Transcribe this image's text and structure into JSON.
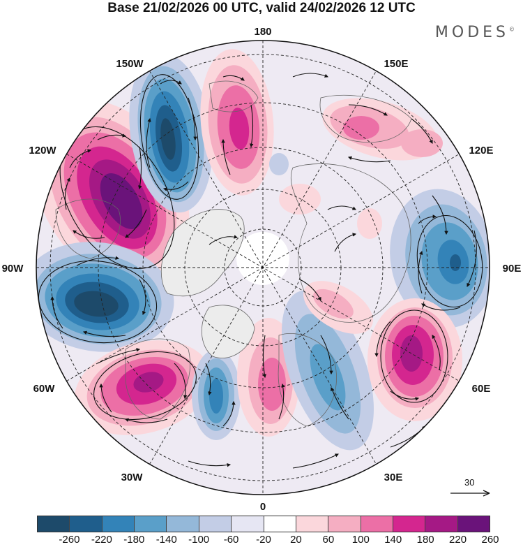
{
  "title": "Base 21/02/2026 00 UTC, valid 24/02/2026 12 UTC",
  "brand": "MODES",
  "brand_mark": "©",
  "longitude_labels": {
    "lon_0": "0",
    "lon_30e": "30E",
    "lon_60e": "60E",
    "lon_90e": "90E",
    "lon_120e": "120E",
    "lon_150e": "150E",
    "lon_180": "180",
    "lon_150w": "150W",
    "lon_120w": "120W",
    "lon_90w": "90W",
    "lon_60w": "60W",
    "lon_30w": "30W"
  },
  "reference_vector": {
    "label": "30"
  },
  "colorbar": {
    "ticks": [
      "-260",
      "-220",
      "-180",
      "-140",
      "-100",
      "-60",
      "-20",
      "20",
      "60",
      "100",
      "140",
      "180",
      "220",
      "260"
    ],
    "colors": [
      "#1d4a6a",
      "#1f5e8c",
      "#3383b8",
      "#5a9fc9",
      "#94b8d9",
      "#c3cde6",
      "#e6e6f3",
      "#ffffff",
      "#fbd7dc",
      "#f5aec2",
      "#ec6fa6",
      "#d4268f",
      "#a51985",
      "#6a137a"
    ]
  }
}
